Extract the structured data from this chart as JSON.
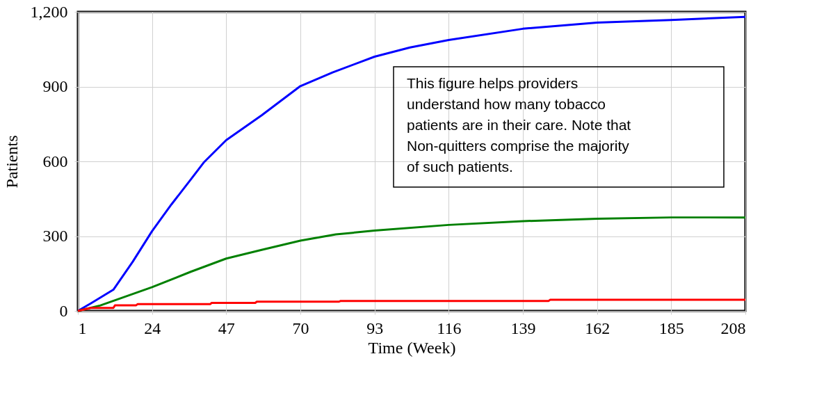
{
  "chart_data": {
    "type": "line",
    "xlabel": "Time (Week)",
    "ylabel": "Patients",
    "xlim": [
      1,
      208
    ],
    "xticks": [
      1,
      24,
      47,
      70,
      93,
      116,
      139,
      162,
      185,
      208
    ],
    "ylim": [
      0,
      1200
    ],
    "yticks": [
      0,
      300,
      600,
      900,
      {
        "value": 1200,
        "label": "1,200"
      }
    ],
    "grid": true,
    "line_style": "solid",
    "marker": "none",
    "annotations": [
      "This figure helps providers\nunderstand how many tobacco\npatients are in their care. Note that\nNon-quitters comprise the majority\nof such patients."
    ],
    "series": [
      {
        "color": "#0000ff",
        "x": [
          1,
          5,
          12,
          18,
          24,
          30,
          36,
          40,
          47,
          58,
          70,
          80,
          93,
          104,
          116,
          139,
          162,
          185,
          208
        ],
        "values": [
          0,
          30,
          85,
          197,
          320,
          427,
          527,
          595,
          685,
          785,
          902,
          957,
          1020,
          1057,
          1087,
          1132,
          1157,
          1167,
          1180
        ]
      },
      {
        "color": "#008000",
        "x": [
          1,
          8,
          24,
          36,
          47,
          58,
          70,
          81,
          93,
          116,
          139,
          162,
          185,
          208
        ],
        "values": [
          0,
          22,
          95,
          157,
          210,
          245,
          282,
          307,
          322,
          345,
          360,
          370,
          375,
          375
        ]
      },
      {
        "color": "#ff0000",
        "x": [
          1,
          5,
          12,
          12.5,
          19,
          19.5,
          42,
          42.5,
          56,
          56.5,
          82,
          82.5,
          147,
          147.5,
          208
        ],
        "values": [
          0,
          12,
          12,
          22,
          22,
          27,
          27,
          32,
          32,
          37,
          37,
          40,
          40,
          45,
          45
        ]
      }
    ]
  }
}
